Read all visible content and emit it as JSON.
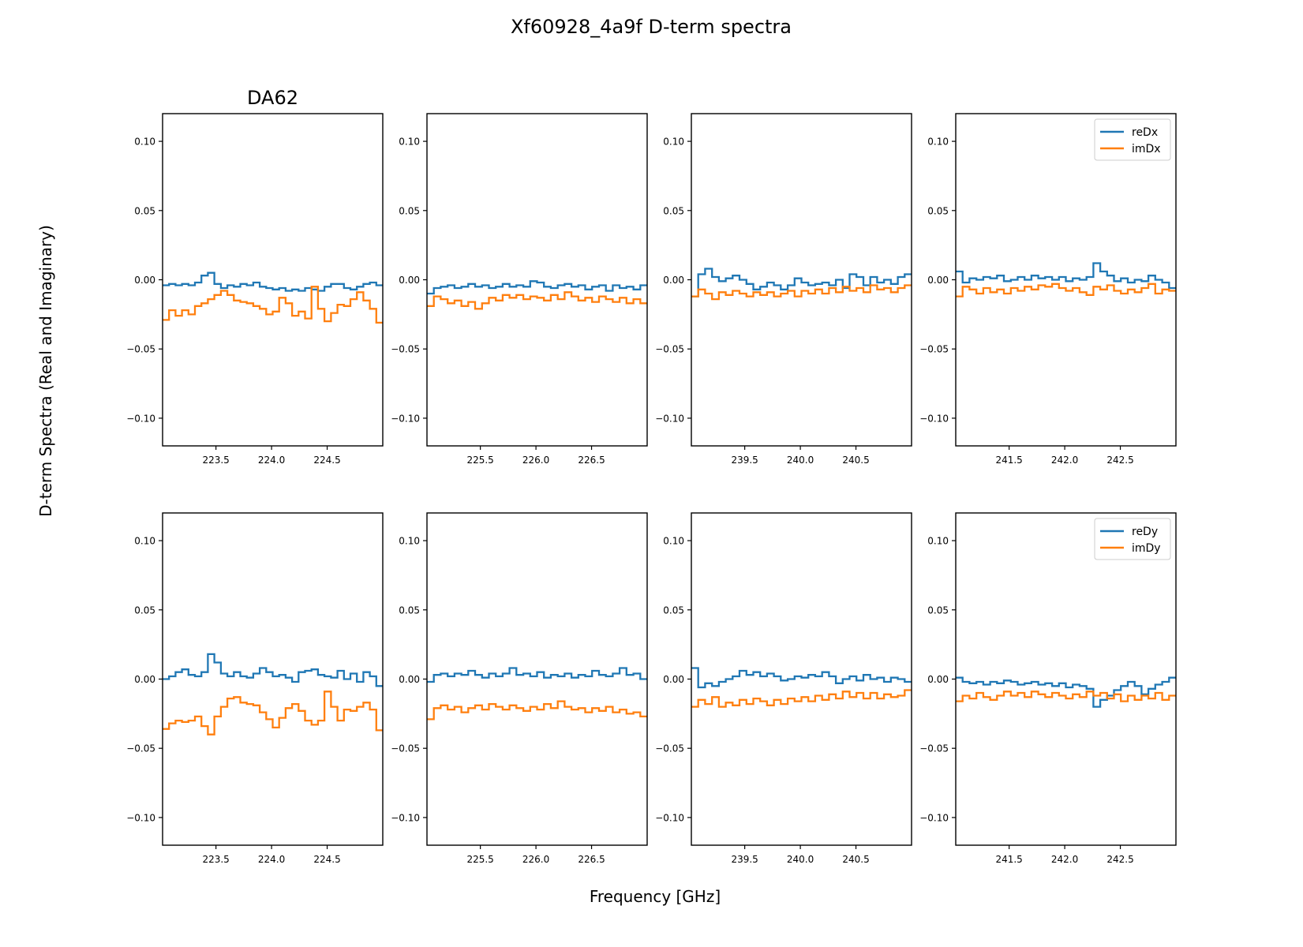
{
  "figure": {
    "title": "Xf60928_4a9f D-term spectra",
    "xlabel": "Frequency [GHz]",
    "ylabel": "D-term Spectra (Real and Imaginary)",
    "first_panel_title": "DA62"
  },
  "colors": {
    "series_real": "#1f77b4",
    "series_imag": "#ff7f0e"
  },
  "chart_data": [
    {
      "type": "line",
      "row": 0,
      "col": 0,
      "title": "DA62",
      "xlim": [
        223.02,
        225.0
      ],
      "ylim": [
        -0.12,
        0.12
      ],
      "xticks": [
        223.5,
        224.0,
        224.5
      ],
      "xtick_labels": [
        "223.5",
        "224.0",
        "224.5"
      ],
      "yticks": [
        0.1,
        0.05,
        0.0,
        -0.05,
        -0.1
      ],
      "ytick_labels": [
        "0.10",
        "0.05",
        "0.00",
        "−0.05",
        "−0.10"
      ],
      "legend": null,
      "series": [
        {
          "values": [
            -0.004,
            -0.003,
            -0.004,
            -0.003,
            -0.004,
            -0.002,
            0.003,
            0.005,
            -0.003,
            -0.006,
            -0.004,
            -0.005,
            -0.003,
            -0.004,
            -0.002,
            -0.005,
            -0.006,
            -0.007,
            -0.006,
            -0.008,
            -0.007,
            -0.008,
            -0.006,
            -0.007,
            -0.008,
            -0.005,
            -0.003,
            -0.003,
            -0.006,
            -0.007,
            -0.005,
            -0.003,
            -0.002,
            -0.004
          ]
        },
        {
          "values": [
            -0.029,
            -0.022,
            -0.026,
            -0.022,
            -0.025,
            -0.019,
            -0.017,
            -0.014,
            -0.011,
            -0.008,
            -0.011,
            -0.015,
            -0.016,
            -0.017,
            -0.019,
            -0.021,
            -0.025,
            -0.023,
            -0.013,
            -0.017,
            -0.026,
            -0.023,
            -0.028,
            -0.005,
            -0.021,
            -0.03,
            -0.024,
            -0.018,
            -0.019,
            -0.014,
            -0.009,
            -0.015,
            -0.021,
            -0.031
          ]
        }
      ]
    },
    {
      "type": "line",
      "row": 0,
      "col": 1,
      "title": "",
      "xlim": [
        225.02,
        227.0
      ],
      "ylim": [
        -0.12,
        0.12
      ],
      "xticks": [
        225.5,
        226.0,
        226.5
      ],
      "xtick_labels": [
        "225.5",
        "226.0",
        "226.5"
      ],
      "yticks": [
        0.1,
        0.05,
        0.0,
        -0.05,
        -0.1
      ],
      "ytick_labels": [
        "0.10",
        "0.05",
        "0.00",
        "−0.05",
        "−0.10"
      ],
      "legend": null,
      "series": [
        {
          "values": [
            -0.01,
            -0.006,
            -0.005,
            -0.004,
            -0.006,
            -0.005,
            -0.003,
            -0.005,
            -0.004,
            -0.006,
            -0.005,
            -0.003,
            -0.005,
            -0.004,
            -0.005,
            -0.001,
            -0.002,
            -0.005,
            -0.006,
            -0.004,
            -0.003,
            -0.005,
            -0.004,
            -0.007,
            -0.005,
            -0.004,
            -0.008,
            -0.004,
            -0.006,
            -0.005,
            -0.007,
            -0.004
          ]
        },
        {
          "values": [
            -0.019,
            -0.012,
            -0.014,
            -0.017,
            -0.015,
            -0.019,
            -0.016,
            -0.021,
            -0.017,
            -0.013,
            -0.015,
            -0.011,
            -0.013,
            -0.011,
            -0.014,
            -0.012,
            -0.013,
            -0.015,
            -0.011,
            -0.014,
            -0.009,
            -0.012,
            -0.015,
            -0.013,
            -0.016,
            -0.012,
            -0.014,
            -0.016,
            -0.013,
            -0.017,
            -0.014,
            -0.017
          ]
        }
      ]
    },
    {
      "type": "line",
      "row": 0,
      "col": 2,
      "title": "",
      "xlim": [
        239.02,
        241.0
      ],
      "ylim": [
        -0.12,
        0.12
      ],
      "xticks": [
        239.5,
        240.0,
        240.5
      ],
      "xtick_labels": [
        "239.5",
        "240.0",
        "240.5"
      ],
      "yticks": [
        0.1,
        0.05,
        0.0,
        -0.05,
        -0.1
      ],
      "ytick_labels": [
        "0.10",
        "0.05",
        "0.00",
        "−0.05",
        "−0.10"
      ],
      "legend": null,
      "series": [
        {
          "values": [
            -0.012,
            0.004,
            0.008,
            0.002,
            -0.001,
            0.001,
            0.003,
            0.0,
            -0.003,
            -0.007,
            -0.005,
            -0.002,
            -0.004,
            -0.007,
            -0.004,
            0.001,
            -0.002,
            -0.004,
            -0.003,
            -0.002,
            -0.004,
            0.0,
            -0.006,
            0.004,
            0.002,
            -0.004,
            0.002,
            -0.002,
            0.0,
            -0.003,
            0.002,
            0.004
          ]
        },
        {
          "values": [
            -0.012,
            -0.007,
            -0.01,
            -0.014,
            -0.009,
            -0.011,
            -0.008,
            -0.01,
            -0.012,
            -0.009,
            -0.011,
            -0.009,
            -0.012,
            -0.01,
            -0.008,
            -0.012,
            -0.008,
            -0.01,
            -0.007,
            -0.01,
            -0.006,
            -0.009,
            -0.005,
            -0.008,
            -0.006,
            -0.009,
            -0.004,
            -0.007,
            -0.006,
            -0.009,
            -0.006,
            -0.004
          ]
        }
      ]
    },
    {
      "type": "line",
      "row": 0,
      "col": 3,
      "title": "",
      "xlim": [
        241.02,
        243.0
      ],
      "ylim": [
        -0.12,
        0.12
      ],
      "xticks": [
        241.5,
        242.0,
        242.5
      ],
      "xtick_labels": [
        "241.5",
        "242.0",
        "242.5"
      ],
      "yticks": [
        0.1,
        0.05,
        0.0,
        -0.05,
        -0.1
      ],
      "ytick_labels": [
        "0.10",
        "0.05",
        "0.00",
        "−0.05",
        "−0.10"
      ],
      "legend": {
        "location": "top-right",
        "labels": [
          "reDx",
          "imDx"
        ]
      },
      "series": [
        {
          "name": "reDx",
          "values": [
            0.006,
            -0.002,
            0.001,
            0.0,
            0.002,
            0.001,
            0.003,
            -0.001,
            0.0,
            0.002,
            0.0,
            0.003,
            0.001,
            0.002,
            0.0,
            0.002,
            -0.001,
            0.001,
            0.0,
            0.002,
            0.012,
            0.006,
            0.003,
            -0.001,
            0.001,
            -0.002,
            0.0,
            -0.001,
            0.003,
            0.0,
            -0.002,
            -0.006
          ]
        },
        {
          "name": "imDx",
          "values": [
            -0.012,
            -0.005,
            -0.007,
            -0.01,
            -0.006,
            -0.009,
            -0.007,
            -0.01,
            -0.006,
            -0.008,
            -0.005,
            -0.007,
            -0.004,
            -0.005,
            -0.003,
            -0.006,
            -0.008,
            -0.006,
            -0.009,
            -0.011,
            -0.005,
            -0.007,
            -0.004,
            -0.008,
            -0.01,
            -0.007,
            -0.009,
            -0.006,
            -0.003,
            -0.01,
            -0.007,
            -0.008
          ]
        }
      ]
    },
    {
      "type": "line",
      "row": 1,
      "col": 0,
      "title": "",
      "xlim": [
        223.02,
        225.0
      ],
      "ylim": [
        -0.12,
        0.12
      ],
      "xticks": [
        223.5,
        224.0,
        224.5
      ],
      "xtick_labels": [
        "223.5",
        "224.0",
        "224.5"
      ],
      "yticks": [
        0.1,
        0.05,
        0.0,
        -0.05,
        -0.1
      ],
      "ytick_labels": [
        "0.10",
        "0.05",
        "0.00",
        "−0.05",
        "−0.10"
      ],
      "legend": null,
      "series": [
        {
          "values": [
            0.0,
            0.002,
            0.005,
            0.007,
            0.003,
            0.002,
            0.005,
            0.018,
            0.012,
            0.004,
            0.002,
            0.005,
            0.002,
            0.001,
            0.004,
            0.008,
            0.005,
            0.002,
            0.003,
            0.001,
            -0.002,
            0.005,
            0.006,
            0.007,
            0.003,
            0.002,
            0.001,
            0.006,
            0.0,
            0.004,
            -0.002,
            0.005,
            0.002,
            -0.005
          ]
        },
        {
          "values": [
            -0.036,
            -0.032,
            -0.03,
            -0.031,
            -0.03,
            -0.027,
            -0.034,
            -0.04,
            -0.027,
            -0.02,
            -0.014,
            -0.013,
            -0.017,
            -0.018,
            -0.019,
            -0.024,
            -0.029,
            -0.035,
            -0.028,
            -0.021,
            -0.018,
            -0.023,
            -0.03,
            -0.033,
            -0.03,
            -0.009,
            -0.02,
            -0.03,
            -0.022,
            -0.023,
            -0.02,
            -0.017,
            -0.022,
            -0.037
          ]
        }
      ]
    },
    {
      "type": "line",
      "row": 1,
      "col": 1,
      "title": "",
      "xlim": [
        225.02,
        227.0
      ],
      "ylim": [
        -0.12,
        0.12
      ],
      "xticks": [
        225.5,
        226.0,
        226.5
      ],
      "xtick_labels": [
        "225.5",
        "226.0",
        "226.5"
      ],
      "yticks": [
        0.1,
        0.05,
        0.0,
        -0.05,
        -0.1
      ],
      "ytick_labels": [
        "0.10",
        "0.05",
        "0.00",
        "−0.05",
        "−0.10"
      ],
      "legend": null,
      "series": [
        {
          "values": [
            -0.002,
            0.003,
            0.004,
            0.002,
            0.004,
            0.003,
            0.006,
            0.003,
            0.001,
            0.004,
            0.002,
            0.004,
            0.008,
            0.003,
            0.004,
            0.002,
            0.005,
            0.001,
            0.003,
            0.002,
            0.004,
            0.001,
            0.003,
            0.002,
            0.006,
            0.003,
            0.002,
            0.004,
            0.008,
            0.003,
            0.004,
            0.0
          ]
        },
        {
          "values": [
            -0.029,
            -0.021,
            -0.019,
            -0.022,
            -0.02,
            -0.024,
            -0.021,
            -0.019,
            -0.022,
            -0.018,
            -0.02,
            -0.022,
            -0.019,
            -0.021,
            -0.023,
            -0.02,
            -0.022,
            -0.018,
            -0.021,
            -0.016,
            -0.02,
            -0.022,
            -0.021,
            -0.024,
            -0.021,
            -0.023,
            -0.02,
            -0.024,
            -0.022,
            -0.025,
            -0.024,
            -0.027
          ]
        }
      ]
    },
    {
      "type": "line",
      "row": 1,
      "col": 2,
      "title": "",
      "xlim": [
        239.02,
        241.0
      ],
      "ylim": [
        -0.12,
        0.12
      ],
      "xticks": [
        239.5,
        240.0,
        240.5
      ],
      "xtick_labels": [
        "239.5",
        "240.0",
        "240.5"
      ],
      "yticks": [
        0.1,
        0.05,
        0.0,
        -0.05,
        -0.1
      ],
      "ytick_labels": [
        "0.10",
        "0.05",
        "0.00",
        "−0.05",
        "−0.10"
      ],
      "legend": null,
      "series": [
        {
          "values": [
            0.008,
            -0.006,
            -0.003,
            -0.005,
            -0.002,
            0.0,
            0.002,
            0.006,
            0.003,
            0.005,
            0.002,
            0.004,
            0.002,
            -0.001,
            0.0,
            0.002,
            0.001,
            0.003,
            0.002,
            0.005,
            0.002,
            -0.003,
            0.0,
            0.002,
            -0.001,
            0.003,
            0.0,
            0.001,
            -0.002,
            0.001,
            0.0,
            -0.002
          ]
        },
        {
          "values": [
            -0.02,
            -0.015,
            -0.018,
            -0.013,
            -0.02,
            -0.017,
            -0.019,
            -0.015,
            -0.018,
            -0.014,
            -0.016,
            -0.019,
            -0.015,
            -0.018,
            -0.014,
            -0.016,
            -0.013,
            -0.016,
            -0.012,
            -0.015,
            -0.011,
            -0.014,
            -0.009,
            -0.013,
            -0.01,
            -0.014,
            -0.01,
            -0.014,
            -0.011,
            -0.013,
            -0.012,
            -0.008
          ]
        }
      ]
    },
    {
      "type": "line",
      "row": 1,
      "col": 3,
      "title": "",
      "xlim": [
        241.02,
        243.0
      ],
      "ylim": [
        -0.12,
        0.12
      ],
      "xticks": [
        241.5,
        242.0,
        242.5
      ],
      "xtick_labels": [
        "241.5",
        "242.0",
        "242.5"
      ],
      "yticks": [
        0.1,
        0.05,
        0.0,
        -0.05,
        -0.1
      ],
      "ytick_labels": [
        "0.10",
        "0.05",
        "0.00",
        "−0.05",
        "−0.10"
      ],
      "legend": {
        "location": "top-right",
        "labels": [
          "reDy",
          "imDy"
        ]
      },
      "series": [
        {
          "name": "reDy",
          "values": [
            0.001,
            -0.002,
            -0.003,
            -0.002,
            -0.004,
            -0.002,
            -0.003,
            -0.001,
            -0.002,
            -0.004,
            -0.003,
            -0.002,
            -0.004,
            -0.003,
            -0.005,
            -0.003,
            -0.006,
            -0.004,
            -0.005,
            -0.007,
            -0.02,
            -0.015,
            -0.012,
            -0.008,
            -0.005,
            -0.002,
            -0.005,
            -0.011,
            -0.007,
            -0.004,
            -0.002,
            0.001
          ]
        },
        {
          "name": "imDy",
          "values": [
            -0.016,
            -0.012,
            -0.014,
            -0.01,
            -0.013,
            -0.015,
            -0.012,
            -0.009,
            -0.012,
            -0.01,
            -0.013,
            -0.009,
            -0.011,
            -0.013,
            -0.01,
            -0.012,
            -0.014,
            -0.011,
            -0.013,
            -0.009,
            -0.012,
            -0.01,
            -0.014,
            -0.011,
            -0.016,
            -0.012,
            -0.015,
            -0.012,
            -0.014,
            -0.01,
            -0.015,
            -0.012
          ]
        }
      ]
    }
  ]
}
